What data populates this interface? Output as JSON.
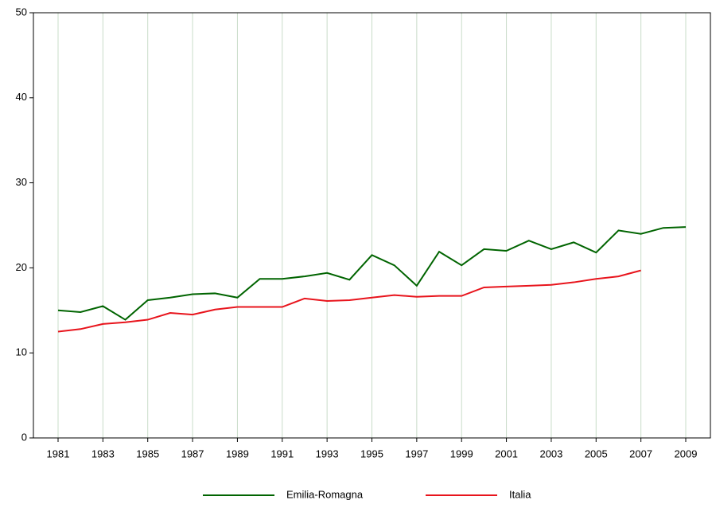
{
  "chart_data": {
    "type": "line",
    "x": [
      1981,
      1982,
      1983,
      1984,
      1985,
      1986,
      1987,
      1988,
      1989,
      1990,
      1991,
      1992,
      1993,
      1994,
      1995,
      1996,
      1997,
      1998,
      1999,
      2000,
      2001,
      2002,
      2003,
      2004,
      2005,
      2006,
      2007,
      2008,
      2009
    ],
    "series": [
      {
        "name": "Emilia-Romagna",
        "color": "#006400",
        "values": [
          15.0,
          14.8,
          15.5,
          13.9,
          16.2,
          16.5,
          16.9,
          17.0,
          16.5,
          18.7,
          18.7,
          19.0,
          19.4,
          18.6,
          21.5,
          20.3,
          17.9,
          21.9,
          20.3,
          22.2,
          22.0,
          23.2,
          22.2,
          23.0,
          21.8,
          24.4,
          24.0,
          24.7,
          24.8
        ]
      },
      {
        "name": "Italia",
        "color": "#e8141c",
        "values": [
          12.5,
          12.8,
          13.4,
          13.6,
          13.9,
          14.7,
          14.5,
          15.1,
          15.4,
          15.4,
          15.4,
          16.4,
          16.1,
          16.2,
          16.5,
          16.8,
          16.6,
          16.7,
          16.7,
          17.7,
          17.8,
          17.9,
          18.0,
          18.3,
          18.7,
          19.0,
          19.7,
          null,
          null
        ]
      }
    ],
    "xlim": [
      1979.9,
      2010.1
    ],
    "xticks": [
      1981,
      1983,
      1985,
      1987,
      1989,
      1991,
      1993,
      1995,
      1997,
      1999,
      2001,
      2003,
      2005,
      2007,
      2009
    ],
    "ylim": [
      0,
      50
    ],
    "yticks": [
      0,
      10,
      20,
      30,
      40,
      50
    ],
    "grid": "x",
    "legend": "bottom"
  }
}
